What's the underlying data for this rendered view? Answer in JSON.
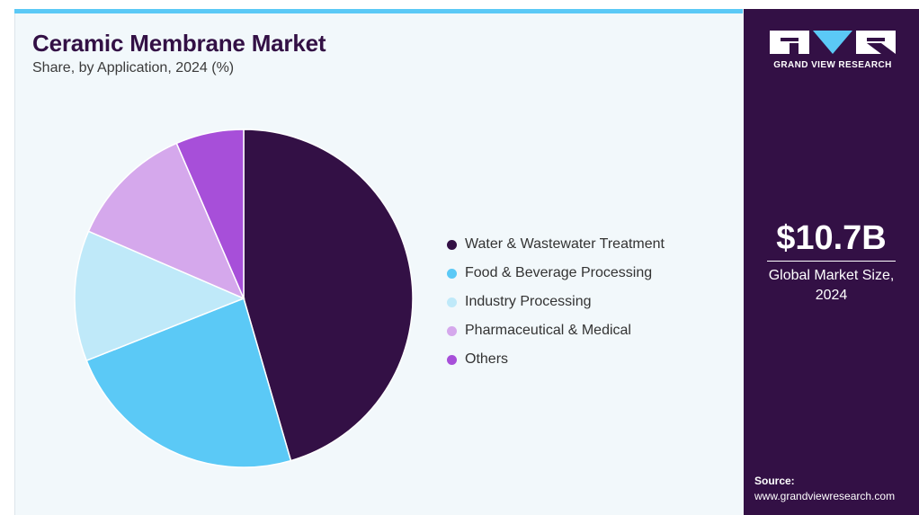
{
  "chart_data": {
    "type": "pie",
    "title": "Ceramic Membrane Market",
    "subtitle": "Share, by Application, 2024 (%)",
    "categories": [
      "Water & Wastewater Treatment",
      "Food & Beverage Processing",
      "Industry Processing",
      "Pharmaceutical & Medical",
      "Others"
    ],
    "values": [
      45.5,
      23.5,
      12.5,
      12.0,
      6.5
    ],
    "colors": [
      "#331045",
      "#5bc9f6",
      "#bfe9f9",
      "#d5a8ec",
      "#a74fd9"
    ],
    "legend": "right"
  },
  "brand": {
    "name": "GRAND VIEW RESEARCH",
    "logo_icon": "gvr-logo-icon"
  },
  "market": {
    "value": "$10.7B",
    "label": "Global Market Size, 2024"
  },
  "source": {
    "label": "Source:",
    "url": "www.grandviewresearch.com"
  }
}
